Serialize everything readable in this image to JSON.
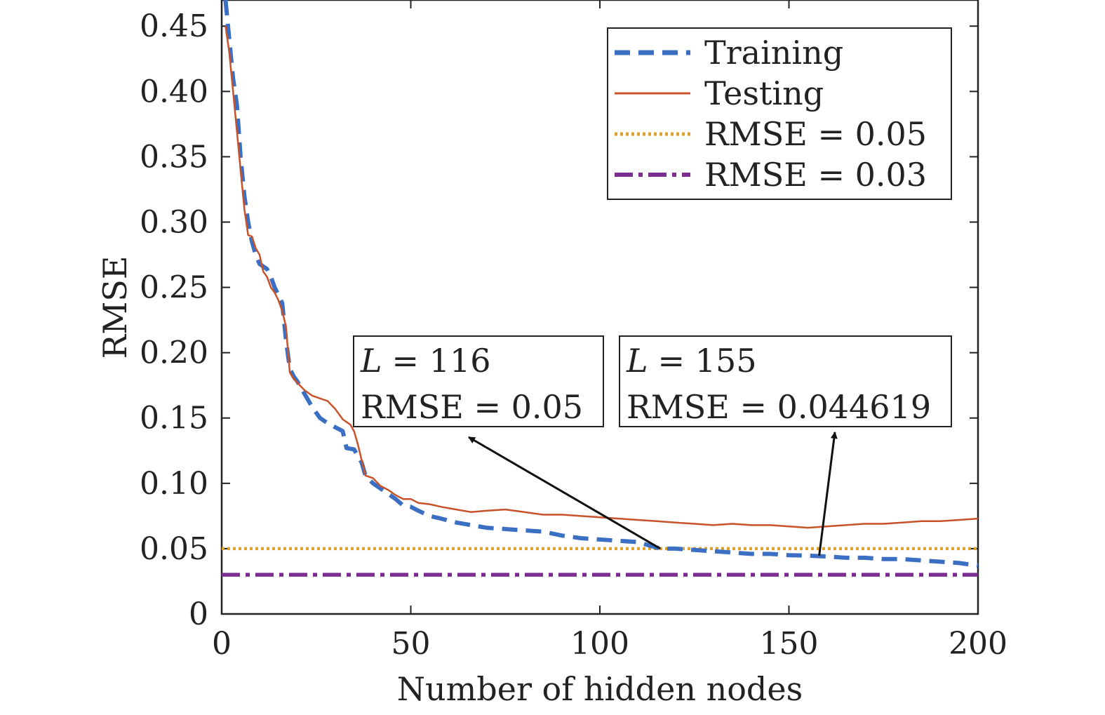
{
  "chart_data": {
    "type": "line",
    "xlabel": "Number of hidden nodes",
    "ylabel": "RMSE",
    "xlim": [
      0,
      200
    ],
    "ylim": [
      0,
      0.47
    ],
    "x_ticks": [
      0,
      50,
      100,
      150,
      200
    ],
    "x_tick_labels": [
      "0",
      "50",
      "100",
      "150",
      "200"
    ],
    "y_ticks": [
      0,
      0.05,
      0.1,
      0.15,
      0.2,
      0.25,
      0.3,
      0.35,
      0.4,
      0.45
    ],
    "y_tick_labels": [
      "0",
      "0.05",
      "0.10",
      "0.15",
      "0.20",
      "0.25",
      "0.30",
      "0.35",
      "0.40",
      "0.45"
    ],
    "legend_position": "top-right",
    "series": [
      {
        "name": "Training",
        "style": "dashed",
        "color": "#3b6fc4",
        "points": [
          [
            1,
            0.47
          ],
          [
            2,
            0.44
          ],
          [
            3,
            0.41
          ],
          [
            4,
            0.39
          ],
          [
            5,
            0.35
          ],
          [
            6,
            0.32
          ],
          [
            7,
            0.3
          ],
          [
            8,
            0.285
          ],
          [
            9,
            0.275
          ],
          [
            10,
            0.268
          ],
          [
            11,
            0.266
          ],
          [
            12,
            0.264
          ],
          [
            13,
            0.258
          ],
          [
            14,
            0.25
          ],
          [
            15,
            0.244
          ],
          [
            16,
            0.238
          ],
          [
            17,
            0.21
          ],
          [
            18,
            0.188
          ],
          [
            19,
            0.182
          ],
          [
            20,
            0.178
          ],
          [
            22,
            0.168
          ],
          [
            24,
            0.158
          ],
          [
            26,
            0.15
          ],
          [
            28,
            0.146
          ],
          [
            30,
            0.143
          ],
          [
            32,
            0.14
          ],
          [
            33,
            0.127
          ],
          [
            35,
            0.126
          ],
          [
            36,
            0.121
          ],
          [
            37,
            0.116
          ],
          [
            38,
            0.106
          ],
          [
            40,
            0.1
          ],
          [
            42,
            0.096
          ],
          [
            44,
            0.092
          ],
          [
            46,
            0.088
          ],
          [
            48,
            0.083
          ],
          [
            50,
            0.082
          ],
          [
            52,
            0.079
          ],
          [
            55,
            0.075
          ],
          [
            58,
            0.073
          ],
          [
            62,
            0.07
          ],
          [
            66,
            0.068
          ],
          [
            70,
            0.066
          ],
          [
            75,
            0.065
          ],
          [
            80,
            0.064
          ],
          [
            85,
            0.063
          ],
          [
            90,
            0.06
          ],
          [
            95,
            0.058
          ],
          [
            100,
            0.057
          ],
          [
            105,
            0.056
          ],
          [
            110,
            0.055
          ],
          [
            116,
            0.05
          ],
          [
            120,
            0.05
          ],
          [
            125,
            0.049
          ],
          [
            130,
            0.048
          ],
          [
            135,
            0.047
          ],
          [
            140,
            0.046
          ],
          [
            145,
            0.046
          ],
          [
            150,
            0.045
          ],
          [
            155,
            0.044619
          ],
          [
            160,
            0.044
          ],
          [
            165,
            0.043
          ],
          [
            170,
            0.043
          ],
          [
            175,
            0.042
          ],
          [
            180,
            0.042
          ],
          [
            185,
            0.041
          ],
          [
            190,
            0.04
          ],
          [
            195,
            0.039
          ],
          [
            200,
            0.037
          ]
        ]
      },
      {
        "name": "Testing",
        "style": "solid",
        "color": "#c8522a",
        "points": [
          [
            1,
            0.45
          ],
          [
            2,
            0.43
          ],
          [
            3,
            0.4
          ],
          [
            4,
            0.37
          ],
          [
            5,
            0.34
          ],
          [
            6,
            0.31
          ],
          [
            7,
            0.29
          ],
          [
            8,
            0.289
          ],
          [
            9,
            0.28
          ],
          [
            10,
            0.275
          ],
          [
            11,
            0.262
          ],
          [
            12,
            0.258
          ],
          [
            13,
            0.25
          ],
          [
            14,
            0.246
          ],
          [
            15,
            0.24
          ],
          [
            16,
            0.232
          ],
          [
            17,
            0.22
          ],
          [
            18,
            0.185
          ],
          [
            19,
            0.18
          ],
          [
            20,
            0.177
          ],
          [
            22,
            0.171
          ],
          [
            24,
            0.167
          ],
          [
            26,
            0.165
          ],
          [
            28,
            0.163
          ],
          [
            30,
            0.157
          ],
          [
            32,
            0.149
          ],
          [
            34,
            0.145
          ],
          [
            35,
            0.14
          ],
          [
            36,
            0.13
          ],
          [
            37,
            0.118
          ],
          [
            38,
            0.106
          ],
          [
            40,
            0.104
          ],
          [
            42,
            0.098
          ],
          [
            44,
            0.095
          ],
          [
            46,
            0.091
          ],
          [
            48,
            0.088
          ],
          [
            50,
            0.088
          ],
          [
            52,
            0.085
          ],
          [
            55,
            0.084
          ],
          [
            58,
            0.082
          ],
          [
            62,
            0.08
          ],
          [
            66,
            0.078
          ],
          [
            70,
            0.079
          ],
          [
            75,
            0.08
          ],
          [
            80,
            0.078
          ],
          [
            85,
            0.076
          ],
          [
            90,
            0.076
          ],
          [
            95,
            0.075
          ],
          [
            100,
            0.074
          ],
          [
            105,
            0.073
          ],
          [
            110,
            0.072
          ],
          [
            115,
            0.071
          ],
          [
            120,
            0.07
          ],
          [
            125,
            0.069
          ],
          [
            130,
            0.068
          ],
          [
            135,
            0.069
          ],
          [
            140,
            0.068
          ],
          [
            145,
            0.068
          ],
          [
            150,
            0.067
          ],
          [
            155,
            0.066
          ],
          [
            160,
            0.067
          ],
          [
            165,
            0.068
          ],
          [
            170,
            0.069
          ],
          [
            175,
            0.069
          ],
          [
            180,
            0.07
          ],
          [
            185,
            0.071
          ],
          [
            190,
            0.071
          ],
          [
            195,
            0.072
          ],
          [
            200,
            0.073
          ]
        ]
      },
      {
        "name": "RMSE = 0.05",
        "style": "dotted",
        "color": "#e0a030",
        "points": [
          [
            0,
            0.05
          ],
          [
            200,
            0.05
          ]
        ]
      },
      {
        "name": "RMSE = 0.03",
        "style": "dashdot",
        "color": "#7b2d91",
        "points": [
          [
            0,
            0.03
          ],
          [
            200,
            0.03
          ]
        ]
      }
    ],
    "annotations": [
      {
        "line1_var": "L",
        "line1_rest": "= 116",
        "line2": "RMSE = 0.05",
        "target": [
          116,
          0.05
        ]
      },
      {
        "line1_var": "L",
        "line1_rest": "= 155",
        "line2": "RMSE = 0.044619",
        "target": [
          158,
          0.044619
        ]
      }
    ]
  }
}
